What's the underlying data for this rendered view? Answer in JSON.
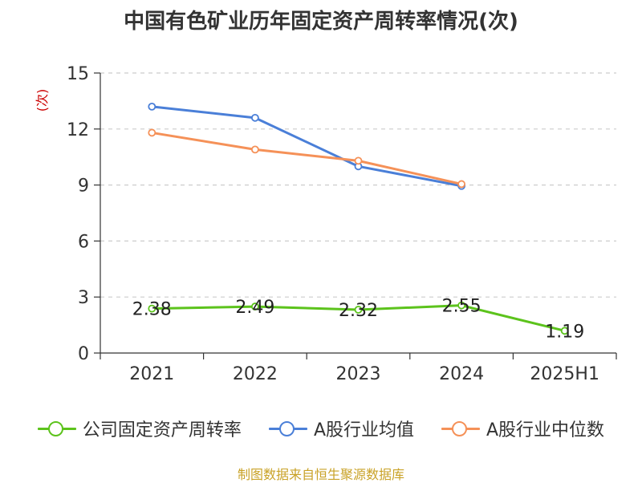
{
  "chart_data": {
    "type": "line",
    "title": "中国有色矿业历年固定资产周转率情况(次)",
    "ylabel": "(次)",
    "xlabel": "",
    "categories": [
      "2021",
      "2022",
      "2023",
      "2024",
      "2025H1"
    ],
    "ylim": [
      0,
      15
    ],
    "yticks": [
      0,
      3,
      6,
      9,
      12,
      15
    ],
    "grid": "horizontal-dashed",
    "legend_position": "bottom",
    "series": [
      {
        "name": "公司固定资产周转率",
        "color": "#5cc31c",
        "values": [
          2.38,
          2.49,
          2.32,
          2.55,
          1.19
        ],
        "data_labels": [
          "2.38",
          "2.49",
          "2.32",
          "2.55",
          "1.19"
        ]
      },
      {
        "name": "A股行业均值",
        "color": "#4a7fd8",
        "values": [
          13.2,
          12.6,
          10.0,
          8.95,
          null
        ]
      },
      {
        "name": "A股行业中位数",
        "color": "#f59158",
        "values": [
          11.8,
          10.9,
          10.3,
          9.05,
          null
        ]
      }
    ]
  },
  "source_note": "制图数据来自恒生聚源数据库"
}
